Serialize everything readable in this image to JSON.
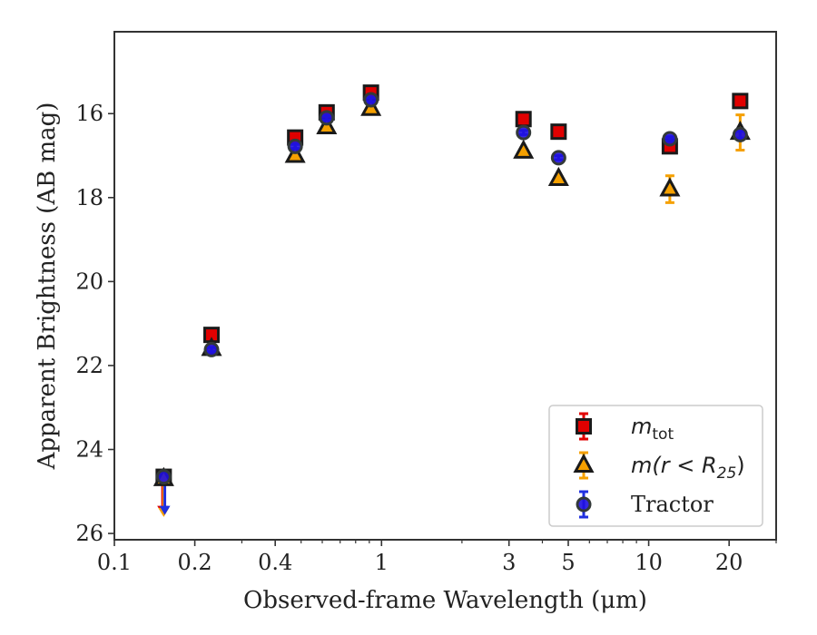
{
  "chart_data": {
    "type": "scatter",
    "xlabel": "Observed-frame Wavelength (μm)",
    "ylabel": "Apparent Brightness (AB mag)",
    "xscale": "log",
    "xlim": [
      0.1,
      30
    ],
    "ylim": [
      26.15,
      14.05
    ],
    "y_inverted": true,
    "xticks": [
      {
        "value": 0.1,
        "label": "0.1"
      },
      {
        "value": 0.2,
        "label": "0.2"
      },
      {
        "value": 0.4,
        "label": "0.4"
      },
      {
        "value": 1,
        "label": "1"
      },
      {
        "value": 3,
        "label": "3"
      },
      {
        "value": 5,
        "label": "5"
      },
      {
        "value": 10,
        "label": "10"
      },
      {
        "value": 20,
        "label": "20"
      }
    ],
    "yticks": [
      {
        "value": 16,
        "label": "16"
      },
      {
        "value": 18,
        "label": "18"
      },
      {
        "value": 20,
        "label": "20"
      },
      {
        "value": 22,
        "label": "22"
      },
      {
        "value": 24,
        "label": "24"
      },
      {
        "value": 26,
        "label": "26"
      }
    ],
    "grid": false,
    "legend_position": "bottom-right",
    "series": [
      {
        "legend_main": "m",
        "legend_sub": "tot",
        "marker": "square",
        "color": "#e00000",
        "errcolor": "#e00000",
        "points": [
          {
            "x": 0.153,
            "y": 24.65,
            "err": 0,
            "upper_limit": true
          },
          {
            "x": 0.231,
            "y": 21.27,
            "err": 0.08
          },
          {
            "x": 0.475,
            "y": 16.57,
            "err": 0.05
          },
          {
            "x": 0.623,
            "y": 15.97,
            "err": 0.05
          },
          {
            "x": 0.913,
            "y": 15.5,
            "err": 0.05
          },
          {
            "x": 3.4,
            "y": 16.13,
            "err": 0.05
          },
          {
            "x": 4.6,
            "y": 16.43,
            "err": 0.05
          },
          {
            "x": 12.0,
            "y": 16.78,
            "err": 0.08
          },
          {
            "x": 22.0,
            "y": 15.7,
            "err": 0.08
          }
        ]
      },
      {
        "legend_main": "m(r < R",
        "legend_sub": "25",
        "legend_tail": ")",
        "marker": "triangle",
        "color": "#f5a000",
        "errcolor": "#f5a000",
        "points": [
          {
            "x": 0.153,
            "y": 24.7,
            "err": 0,
            "upper_limit": true
          },
          {
            "x": 0.231,
            "y": 21.6,
            "err": 0.08
          },
          {
            "x": 0.475,
            "y": 17.0,
            "err": 0.05
          },
          {
            "x": 0.623,
            "y": 16.32,
            "err": 0.05
          },
          {
            "x": 0.913,
            "y": 15.88,
            "err": 0.05
          },
          {
            "x": 3.4,
            "y": 16.9,
            "err": 0.05
          },
          {
            "x": 4.6,
            "y": 17.55,
            "err": 0.05
          },
          {
            "x": 12.0,
            "y": 17.8,
            "err": 0.32
          },
          {
            "x": 22.0,
            "y": 16.45,
            "err": 0.42
          }
        ]
      },
      {
        "legend_main": "Tractor",
        "legend_sub": "",
        "marker": "circle",
        "color": "#1f10e0",
        "errcolor": "#2030e0",
        "points": [
          {
            "x": 0.153,
            "y": 24.65,
            "err": 0,
            "upper_limit": true
          },
          {
            "x": 0.231,
            "y": 21.62,
            "err": 0.05
          },
          {
            "x": 0.475,
            "y": 16.78,
            "err": 0.05
          },
          {
            "x": 0.623,
            "y": 16.1,
            "err": 0.05
          },
          {
            "x": 0.913,
            "y": 15.67,
            "err": 0.05
          },
          {
            "x": 3.4,
            "y": 16.45,
            "err": 0.05
          },
          {
            "x": 4.6,
            "y": 17.05,
            "err": 0.05
          },
          {
            "x": 12.0,
            "y": 16.6,
            "err": 0.05
          },
          {
            "x": 22.0,
            "y": 16.5,
            "err": 0.08
          }
        ]
      }
    ]
  }
}
